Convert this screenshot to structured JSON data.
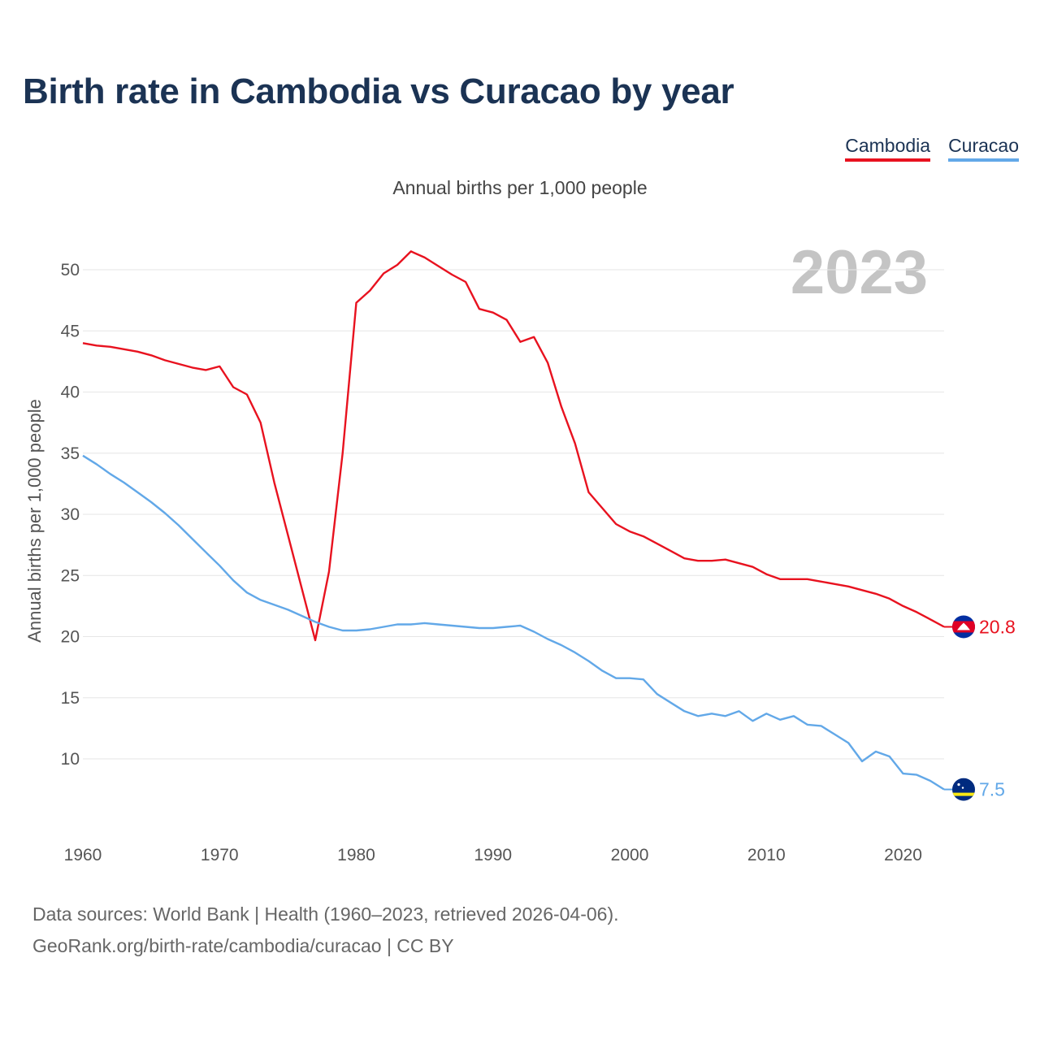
{
  "title": "Birth rate in Cambodia vs Curacao by year",
  "legend": {
    "cambodia": "Cambodia",
    "curacao": "Curacao"
  },
  "subtitle": "Annual births per 1,000 people",
  "year_label": "2023",
  "source": {
    "line1": "Data sources: World Bank | Health (1960–2023, retrieved 2026-04-06).",
    "line2": "GeoRank.org/birth-rate/cambodia/curacao | CC BY"
  },
  "colors": {
    "cambodia": "#e8121f",
    "curacao": "#62a8e8",
    "title": "#1b3354"
  },
  "chart_data": {
    "type": "line",
    "title": "Birth rate in Cambodia vs Curacao by year",
    "xlabel": "",
    "ylabel": "Annual births per 1,000 people",
    "xlim": [
      1960,
      2023
    ],
    "ylim": [
      5,
      52
    ],
    "xticks": [
      1960,
      1970,
      1980,
      1990,
      2000,
      2010,
      2020
    ],
    "yticks": [
      10,
      15,
      20,
      25,
      30,
      35,
      40,
      45,
      50
    ],
    "grid": true,
    "legend_position": "top-right",
    "x": [
      1960,
      1961,
      1962,
      1963,
      1964,
      1965,
      1966,
      1967,
      1968,
      1969,
      1970,
      1971,
      1972,
      1973,
      1974,
      1975,
      1976,
      1977,
      1978,
      1979,
      1980,
      1981,
      1982,
      1983,
      1984,
      1985,
      1986,
      1987,
      1988,
      1989,
      1990,
      1991,
      1992,
      1993,
      1994,
      1995,
      1996,
      1997,
      1998,
      1999,
      2000,
      2001,
      2002,
      2003,
      2004,
      2005,
      2006,
      2007,
      2008,
      2009,
      2010,
      2011,
      2012,
      2013,
      2014,
      2015,
      2016,
      2017,
      2018,
      2019,
      2020,
      2021,
      2022,
      2023
    ],
    "series": [
      {
        "name": "Cambodia",
        "end_label": "20.8",
        "values": [
          44.0,
          43.8,
          43.7,
          43.5,
          43.3,
          43.0,
          42.6,
          42.3,
          42.0,
          41.8,
          42.1,
          40.4,
          39.8,
          37.5,
          32.6,
          28.3,
          24.0,
          19.7,
          25.3,
          35.0,
          47.3,
          48.3,
          49.7,
          50.4,
          51.5,
          51.0,
          50.3,
          49.6,
          49.0,
          46.8,
          46.5,
          45.9,
          44.1,
          44.5,
          42.4,
          38.8,
          35.8,
          31.8,
          30.5,
          29.2,
          28.6,
          28.2,
          27.6,
          27.0,
          26.4,
          26.2,
          26.2,
          26.3,
          26.0,
          25.7,
          25.1,
          24.7,
          24.7,
          24.7,
          24.5,
          24.3,
          24.1,
          23.8,
          23.5,
          23.1,
          22.5,
          22.0,
          21.4,
          20.8
        ]
      },
      {
        "name": "Curacao",
        "end_label": "7.5",
        "values": [
          34.8,
          34.1,
          33.3,
          32.6,
          31.8,
          31.0,
          30.1,
          29.1,
          28.0,
          26.9,
          25.8,
          24.6,
          23.6,
          23.0,
          22.6,
          22.2,
          21.7,
          21.2,
          20.8,
          20.5,
          20.5,
          20.6,
          20.8,
          21.0,
          21.0,
          21.1,
          21.0,
          20.9,
          20.8,
          20.7,
          20.7,
          20.8,
          20.9,
          20.4,
          19.8,
          19.3,
          18.7,
          18.0,
          17.2,
          16.6,
          16.6,
          16.5,
          15.3,
          14.6,
          13.9,
          13.5,
          13.7,
          13.5,
          13.9,
          13.1,
          13.7,
          13.2,
          13.5,
          12.8,
          12.7,
          12.0,
          11.3,
          9.8,
          10.6,
          10.2,
          8.8,
          8.7,
          8.2,
          7.5
        ]
      }
    ]
  }
}
